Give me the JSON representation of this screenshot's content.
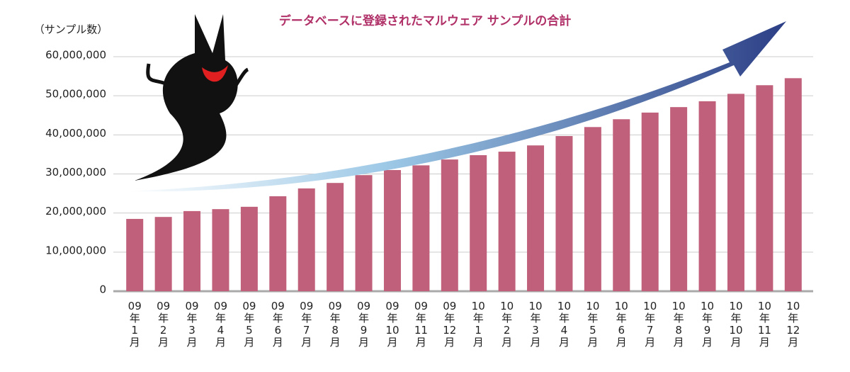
{
  "chart_data": {
    "type": "bar",
    "title": "データベースに登録されたマルウェア サンプルの合計",
    "y_label": "（サンプル数）",
    "categories": [
      "09年1月",
      "09年2月",
      "09年3月",
      "09年4月",
      "09年5月",
      "09年6月",
      "09年7月",
      "09年8月",
      "09年9月",
      "09年10月",
      "09年11月",
      "09年12月",
      "10年1月",
      "10年2月",
      "10年3月",
      "10年4月",
      "10年5月",
      "10年6月",
      "10年7月",
      "10年8月",
      "10年9月",
      "10年10月",
      "10年11月",
      "10年12月"
    ],
    "values": [
      18500000,
      19000000,
      20500000,
      21000000,
      21600000,
      24300000,
      26300000,
      27700000,
      29700000,
      31000000,
      32200000,
      33700000,
      34800000,
      35700000,
      37300000,
      39700000,
      42000000,
      44000000,
      45700000,
      47100000,
      48600000,
      50500000,
      52700000,
      54500000
    ],
    "color": "#c0607a",
    "ylim": [
      0,
      60000000
    ],
    "yticks": [
      0,
      {
        "value": 10000000,
        "label": "10,000,000"
      },
      {
        "value": 20000000,
        "label": "20,000,000"
      },
      {
        "value": 30000000,
        "label": "30,000,000"
      },
      {
        "value": 40000000,
        "label": "40,000,000"
      },
      {
        "value": 50000000,
        "label": "50,000,000"
      },
      {
        "value": 60000000,
        "label": "60,000,000"
      }
    ],
    "grid": true
  }
}
